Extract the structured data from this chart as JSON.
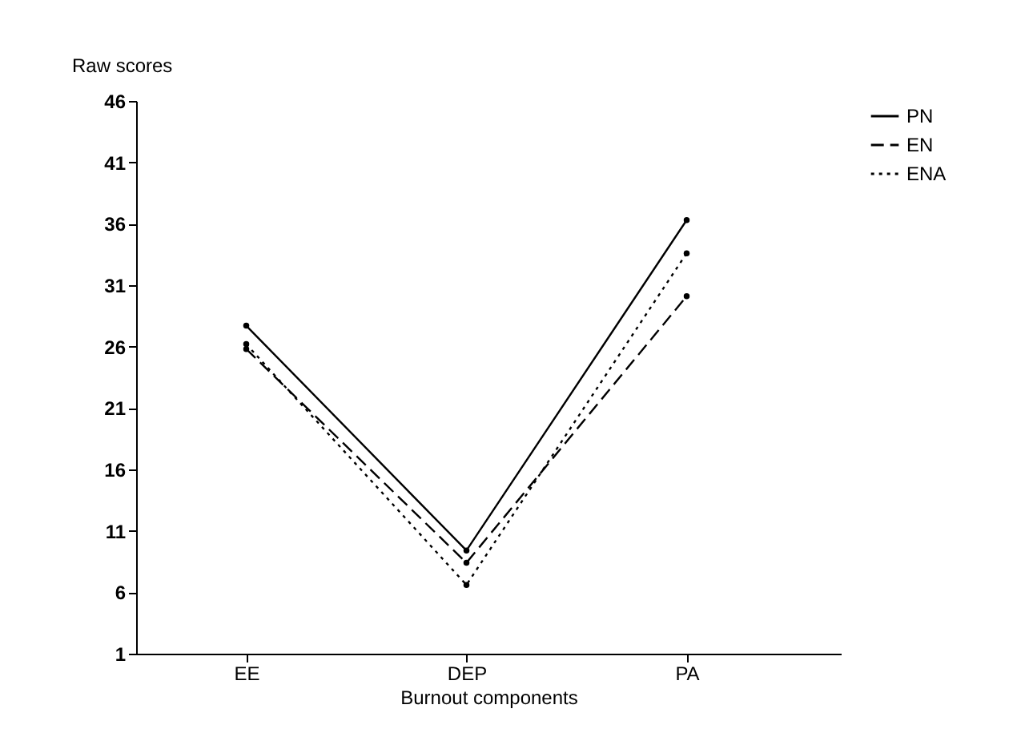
{
  "chart_data": {
    "type": "line",
    "xlabel": "Burnout components",
    "ylabel": "Raw scores",
    "categories": [
      "EE",
      "DEP",
      "PA"
    ],
    "series": [
      {
        "name": "PN",
        "color": "#000000",
        "line_style": "solid",
        "values": [
          27.7,
          9.4,
          36.3
        ]
      },
      {
        "name": "EN",
        "color": "#000000",
        "line_style": "dashed",
        "values": [
          25.8,
          8.4,
          30.1
        ]
      },
      {
        "name": "ENA",
        "color": "#000000",
        "line_style": "dotted",
        "values": [
          26.2,
          6.6,
          33.6
        ]
      }
    ],
    "ylim": [
      1,
      46
    ],
    "yticks": [
      1,
      6,
      11,
      16,
      21,
      26,
      31,
      36,
      41,
      46
    ],
    "grid": false,
    "legend": "right",
    "marker": "circle"
  }
}
